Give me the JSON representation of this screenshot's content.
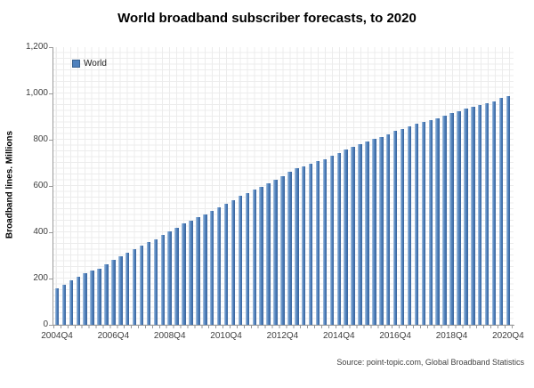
{
  "title": "World broadband subscriber forecasts, to 2020",
  "source_note": "Source: point-topic.com, Global Broadband Statistics",
  "legend": {
    "label": "World",
    "swatch_color": "#4F81BD",
    "position": "top-left-inside"
  },
  "y_axis": {
    "title": "Broadband lines. Millions",
    "tick_labels": [
      "0",
      "200",
      "400",
      "600",
      "800",
      "1,000",
      "1,200"
    ],
    "tick_values": [
      0,
      200,
      400,
      600,
      800,
      1000,
      1200
    ]
  },
  "x_axis": {
    "tick_labels": [
      "2004Q4",
      "2006Q4",
      "2008Q4",
      "2010Q4",
      "2012Q4",
      "2014Q4",
      "2016Q4",
      "2018Q4",
      "2020Q4"
    ],
    "tick_every_n_bars": 8
  },
  "colors": {
    "bar_main": "#4F81BD",
    "bar_highlight": "#B3CBE5",
    "bar_shadow": "#3A639B",
    "axis": "#9A9A9A",
    "minor_grid": "#ECECEC",
    "text": "#3F3F3F"
  },
  "chart_data": {
    "type": "bar",
    "title": "World broadband subscriber forecasts, to 2020",
    "xlabel": "",
    "ylabel": "Broadband lines. Millions",
    "ylim": [
      0,
      1200
    ],
    "grid": "fine-minor-grid-on",
    "legend_position": "top-left",
    "x": [
      "2004Q4",
      "2005Q1",
      "2005Q2",
      "2005Q3",
      "2005Q4",
      "2006Q1",
      "2006Q2",
      "2006Q3",
      "2006Q4",
      "2007Q1",
      "2007Q2",
      "2007Q3",
      "2007Q4",
      "2008Q1",
      "2008Q2",
      "2008Q3",
      "2008Q4",
      "2009Q1",
      "2009Q2",
      "2009Q3",
      "2009Q4",
      "2010Q1",
      "2010Q2",
      "2010Q3",
      "2010Q4",
      "2011Q1",
      "2011Q2",
      "2011Q3",
      "2011Q4",
      "2012Q1",
      "2012Q2",
      "2012Q3",
      "2012Q4",
      "2013Q1",
      "2013Q2",
      "2013Q3",
      "2013Q4",
      "2014Q1",
      "2014Q2",
      "2014Q3",
      "2014Q4",
      "2015Q1",
      "2015Q2",
      "2015Q3",
      "2015Q4",
      "2016Q1",
      "2016Q2",
      "2016Q3",
      "2016Q4",
      "2017Q1",
      "2017Q2",
      "2017Q3",
      "2017Q4",
      "2018Q1",
      "2018Q2",
      "2018Q3",
      "2018Q4",
      "2019Q1",
      "2019Q2",
      "2019Q3",
      "2019Q4",
      "2020Q1",
      "2020Q2",
      "2020Q3",
      "2020Q4"
    ],
    "series": [
      {
        "name": "World",
        "values": [
          158,
          175,
          192,
          209,
          225,
          233,
          243,
          260,
          280,
          298,
          312,
          327,
          342,
          356,
          370,
          388,
          404,
          420,
          437,
          450,
          464,
          478,
          491,
          509,
          524,
          539,
          557,
          570,
          584,
          598,
          612,
          628,
          644,
          660,
          676,
          686,
          696,
          706,
          716,
          729,
          743,
          756,
          771,
          781,
          792,
          802,
          812,
          825,
          838,
          848,
          859,
          868,
          876,
          884,
          892,
          904,
          915,
          925,
          934,
          942,
          950,
          959,
          967,
          979,
          988
        ]
      }
    ]
  }
}
